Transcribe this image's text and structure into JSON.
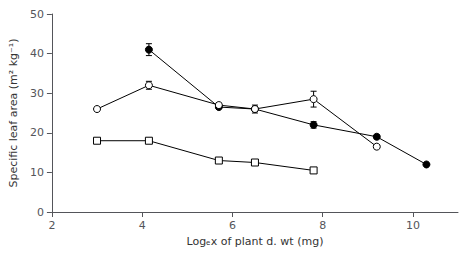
{
  "chart_data": {
    "type": "line",
    "xlabel": "Logₑx of plant d. wt (mg)",
    "ylabel": "Specific leaf area (m² kg⁻¹)",
    "xlim": [
      2,
      11
    ],
    "ylim": [
      0,
      50
    ],
    "xticks": [
      2,
      4,
      6,
      8,
      10
    ],
    "yticks": [
      0,
      10,
      20,
      30,
      40,
      50
    ],
    "grid": false,
    "series": [
      {
        "marker": "filled_circle",
        "color": "#000000",
        "x": [
          4.15,
          5.7,
          6.5,
          7.8,
          9.2,
          10.3
        ],
        "values": [
          41.0,
          26.5,
          26.0,
          22.0,
          19.0,
          12.0
        ],
        "yerr": [
          1.5,
          0.0,
          1.0,
          0.8,
          0.5,
          0.0
        ]
      },
      {
        "marker": "open_circle",
        "color": "#000000",
        "x": [
          3.0,
          4.15,
          5.7,
          6.5,
          7.8,
          9.2
        ],
        "values": [
          26.0,
          32.0,
          27.0,
          26.0,
          28.5,
          16.5
        ],
        "yerr": [
          0.0,
          1.0,
          0.5,
          0.5,
          2.0,
          0.5
        ]
      },
      {
        "marker": "open_square",
        "color": "#000000",
        "x": [
          3.0,
          4.15,
          5.7,
          6.5,
          7.8
        ],
        "values": [
          18.0,
          18.0,
          13.0,
          12.5,
          10.5
        ],
        "yerr": [
          0.0,
          0.0,
          0.0,
          0.0,
          0.0
        ]
      }
    ]
  }
}
